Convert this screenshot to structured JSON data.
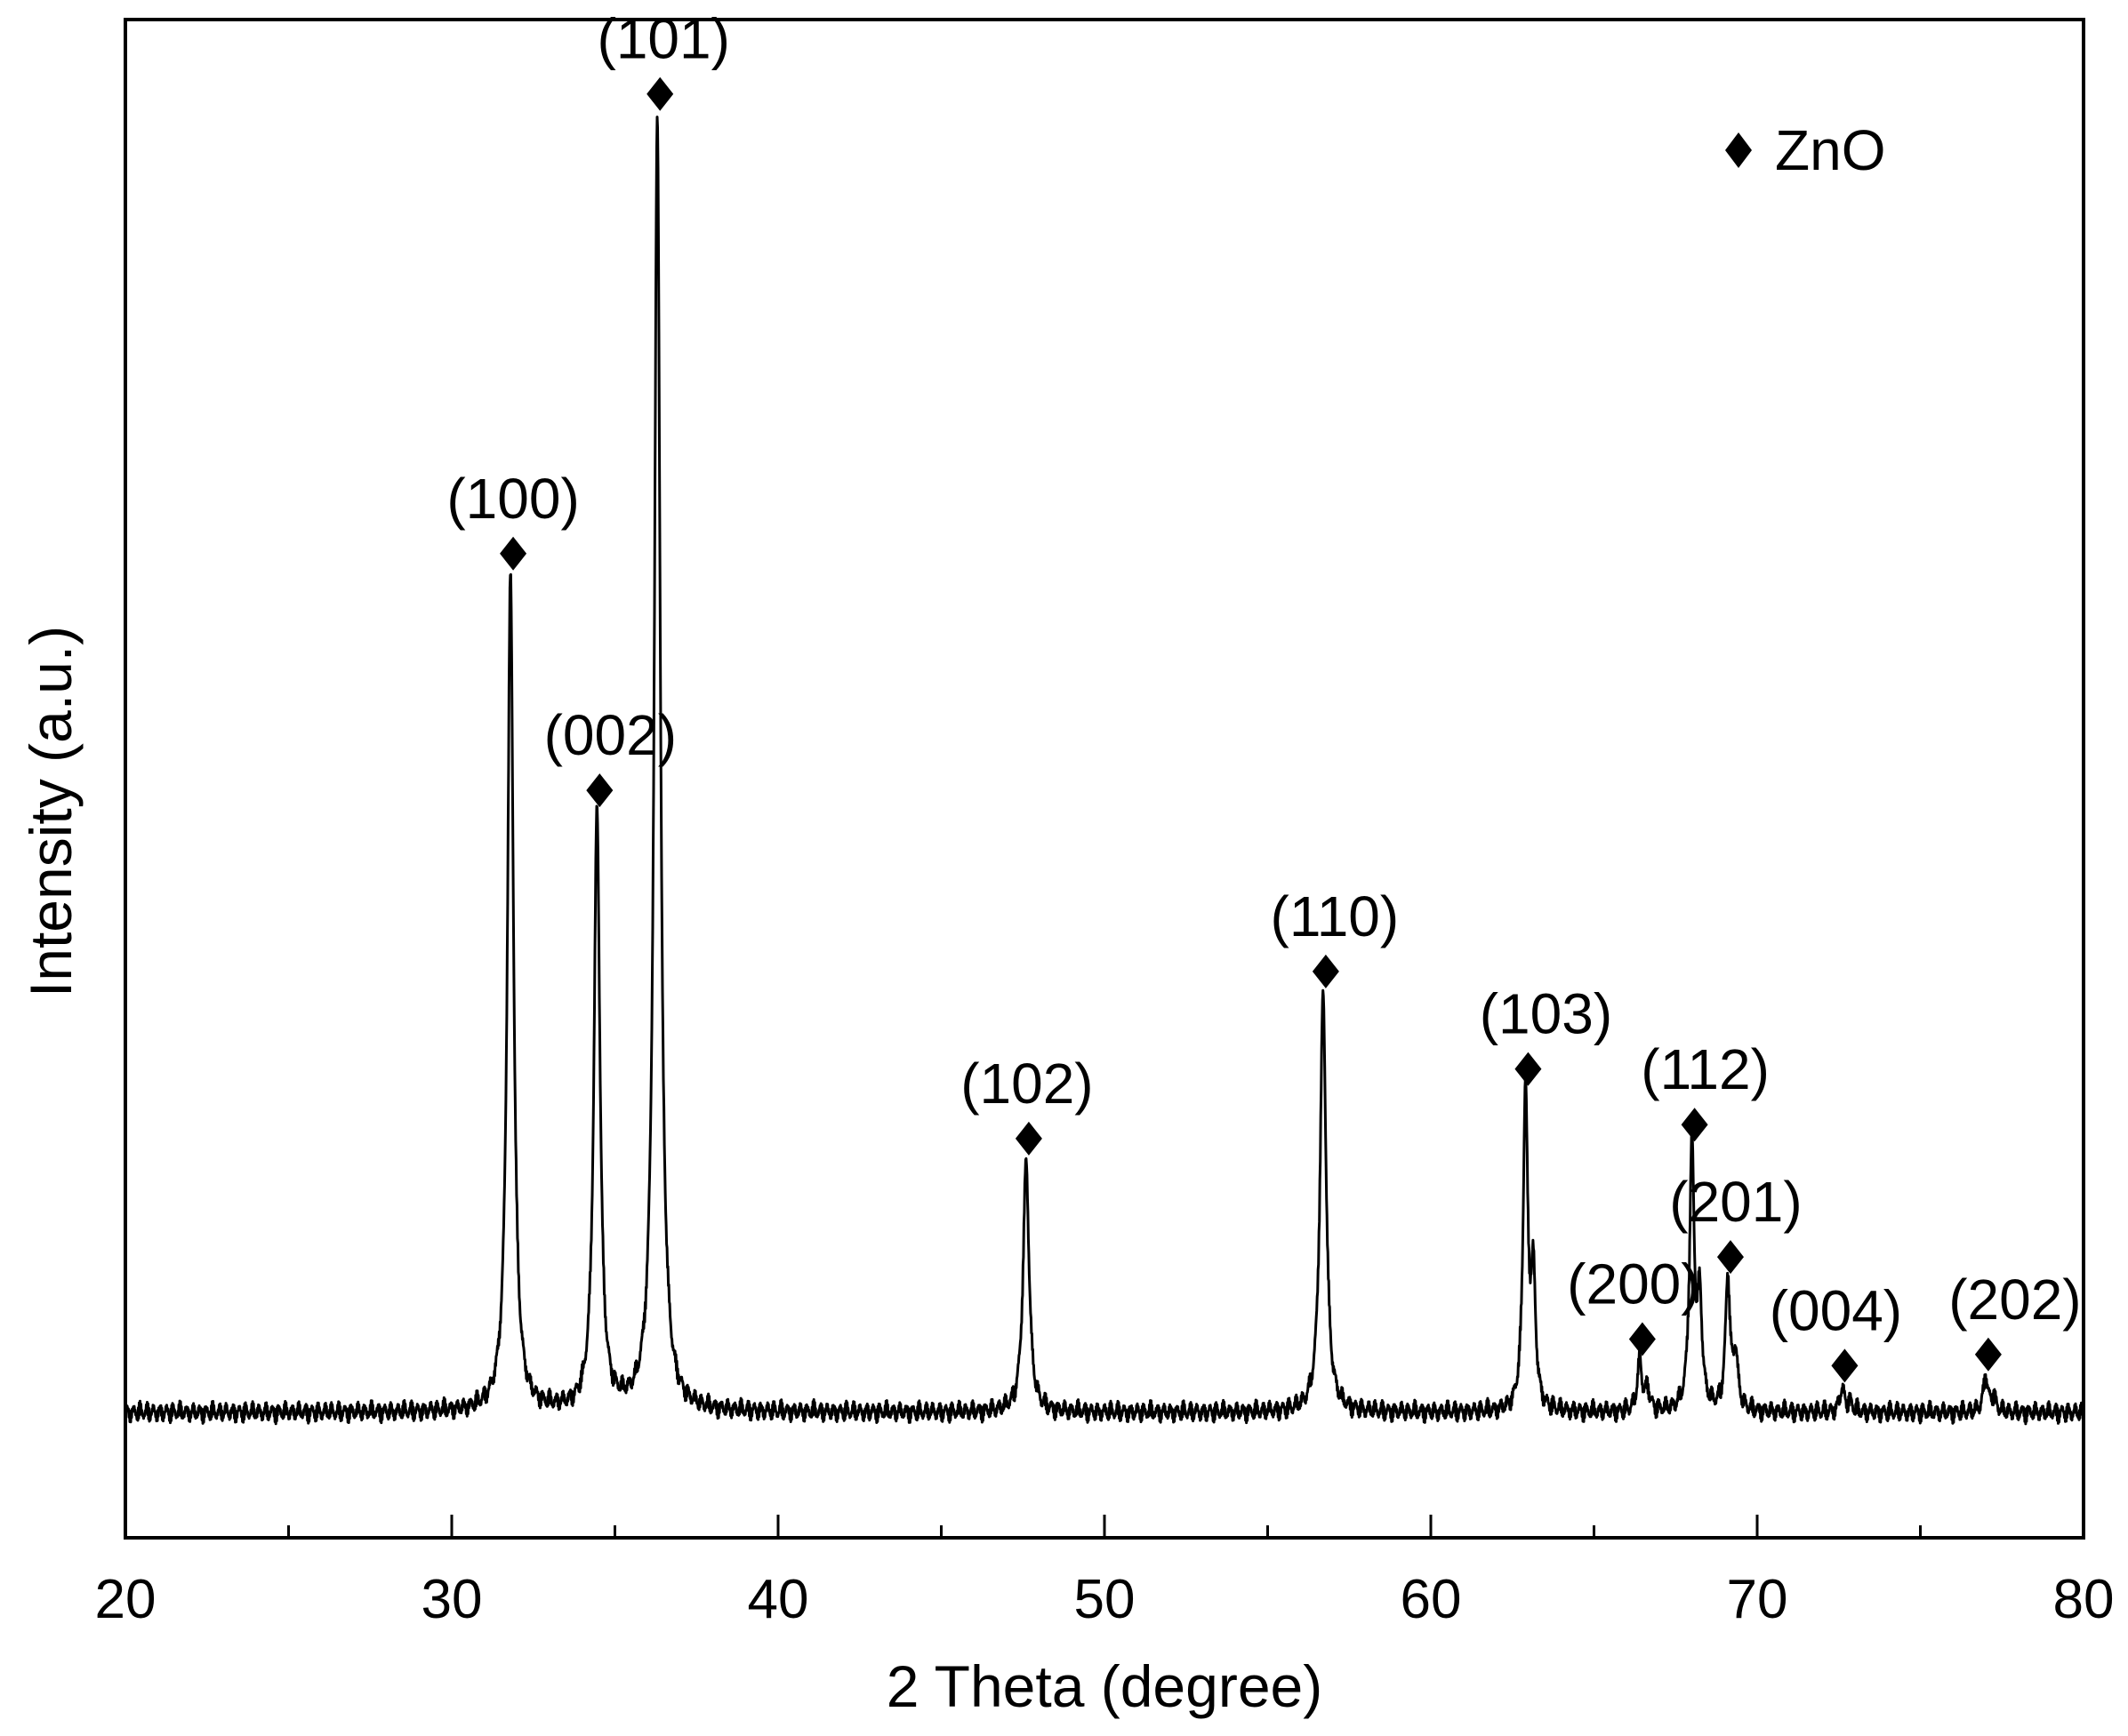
{
  "chart_data": {
    "type": "line",
    "xlabel": "2 Theta (degree)",
    "ylabel": "Intensity (a.u.)",
    "xlim": [
      20,
      80
    ],
    "ylim": [
      -0.09,
      1.0
    ],
    "yticks_shown": false,
    "grid": false,
    "xticks": [
      {
        "value": 20,
        "label": "20"
      },
      {
        "value": 30,
        "label": "30"
      },
      {
        "value": 40,
        "label": "40"
      },
      {
        "value": 50,
        "label": "50"
      },
      {
        "value": 60,
        "label": "60"
      },
      {
        "value": 70,
        "label": "70"
      },
      {
        "value": 80,
        "label": "80"
      }
    ],
    "xminor_ticks": [
      25,
      35,
      45,
      55,
      65,
      75
    ],
    "legend": {
      "position": "top-right",
      "entries": [
        {
          "marker": "diamond",
          "label": "ZnO"
        }
      ]
    },
    "series": [
      {
        "line_color": "#000000",
        "baseline": 0.0,
        "peaks": [
          {
            "x": 31.8,
            "height": 0.6,
            "label": "(100)"
          },
          {
            "x": 34.45,
            "height": 0.43,
            "label": "(002)"
          },
          {
            "x": 36.3,
            "height": 0.93,
            "label": "(101)"
          },
          {
            "x": 47.6,
            "height": 0.18,
            "label": "(102)"
          },
          {
            "x": 56.7,
            "height": 0.3,
            "label": "(110)"
          },
          {
            "x": 62.9,
            "height": 0.23,
            "label": "(103)"
          },
          {
            "x": 66.4,
            "height": 0.036,
            "label": "(200)"
          },
          {
            "x": 68.0,
            "height": 0.19,
            "label": "(112)"
          },
          {
            "x": 69.1,
            "height": 0.095,
            "label": "(201)"
          },
          {
            "x": 72.6,
            "height": 0.017,
            "label": "(004)"
          },
          {
            "x": 77.0,
            "height": 0.025,
            "label": "(202)"
          }
        ]
      }
    ]
  }
}
